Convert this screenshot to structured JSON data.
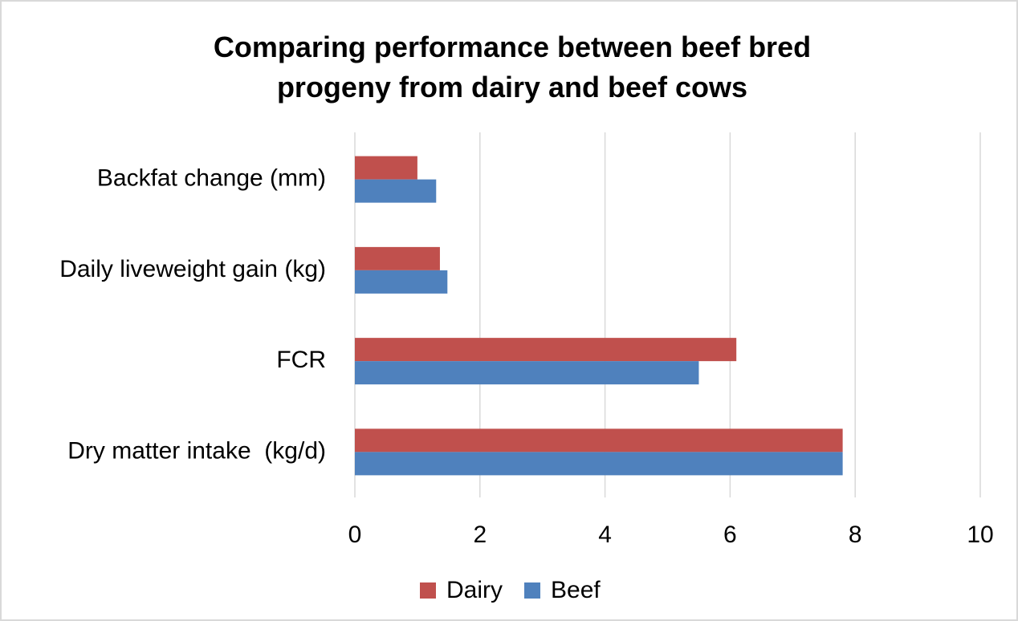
{
  "chart_data": {
    "type": "hbar",
    "title": "Comparing performance between beef bred\nprogeny from dairy and beef cows",
    "categories": [
      "Backfat change (mm)",
      "Daily liveweight gain (kg)",
      "FCR",
      "Dry matter intake  (kg/d)"
    ],
    "series": [
      {
        "name": "Dairy",
        "color": "#c0504d",
        "values": [
          1.0,
          1.36,
          6.1,
          7.8
        ]
      },
      {
        "name": "Beef",
        "color": "#4f81bd",
        "values": [
          1.3,
          1.48,
          5.5,
          7.8
        ]
      }
    ],
    "xlim": [
      0,
      10
    ],
    "xticks": [
      0,
      2,
      4,
      6,
      8,
      10
    ],
    "grid": true,
    "legend": "bottom"
  }
}
